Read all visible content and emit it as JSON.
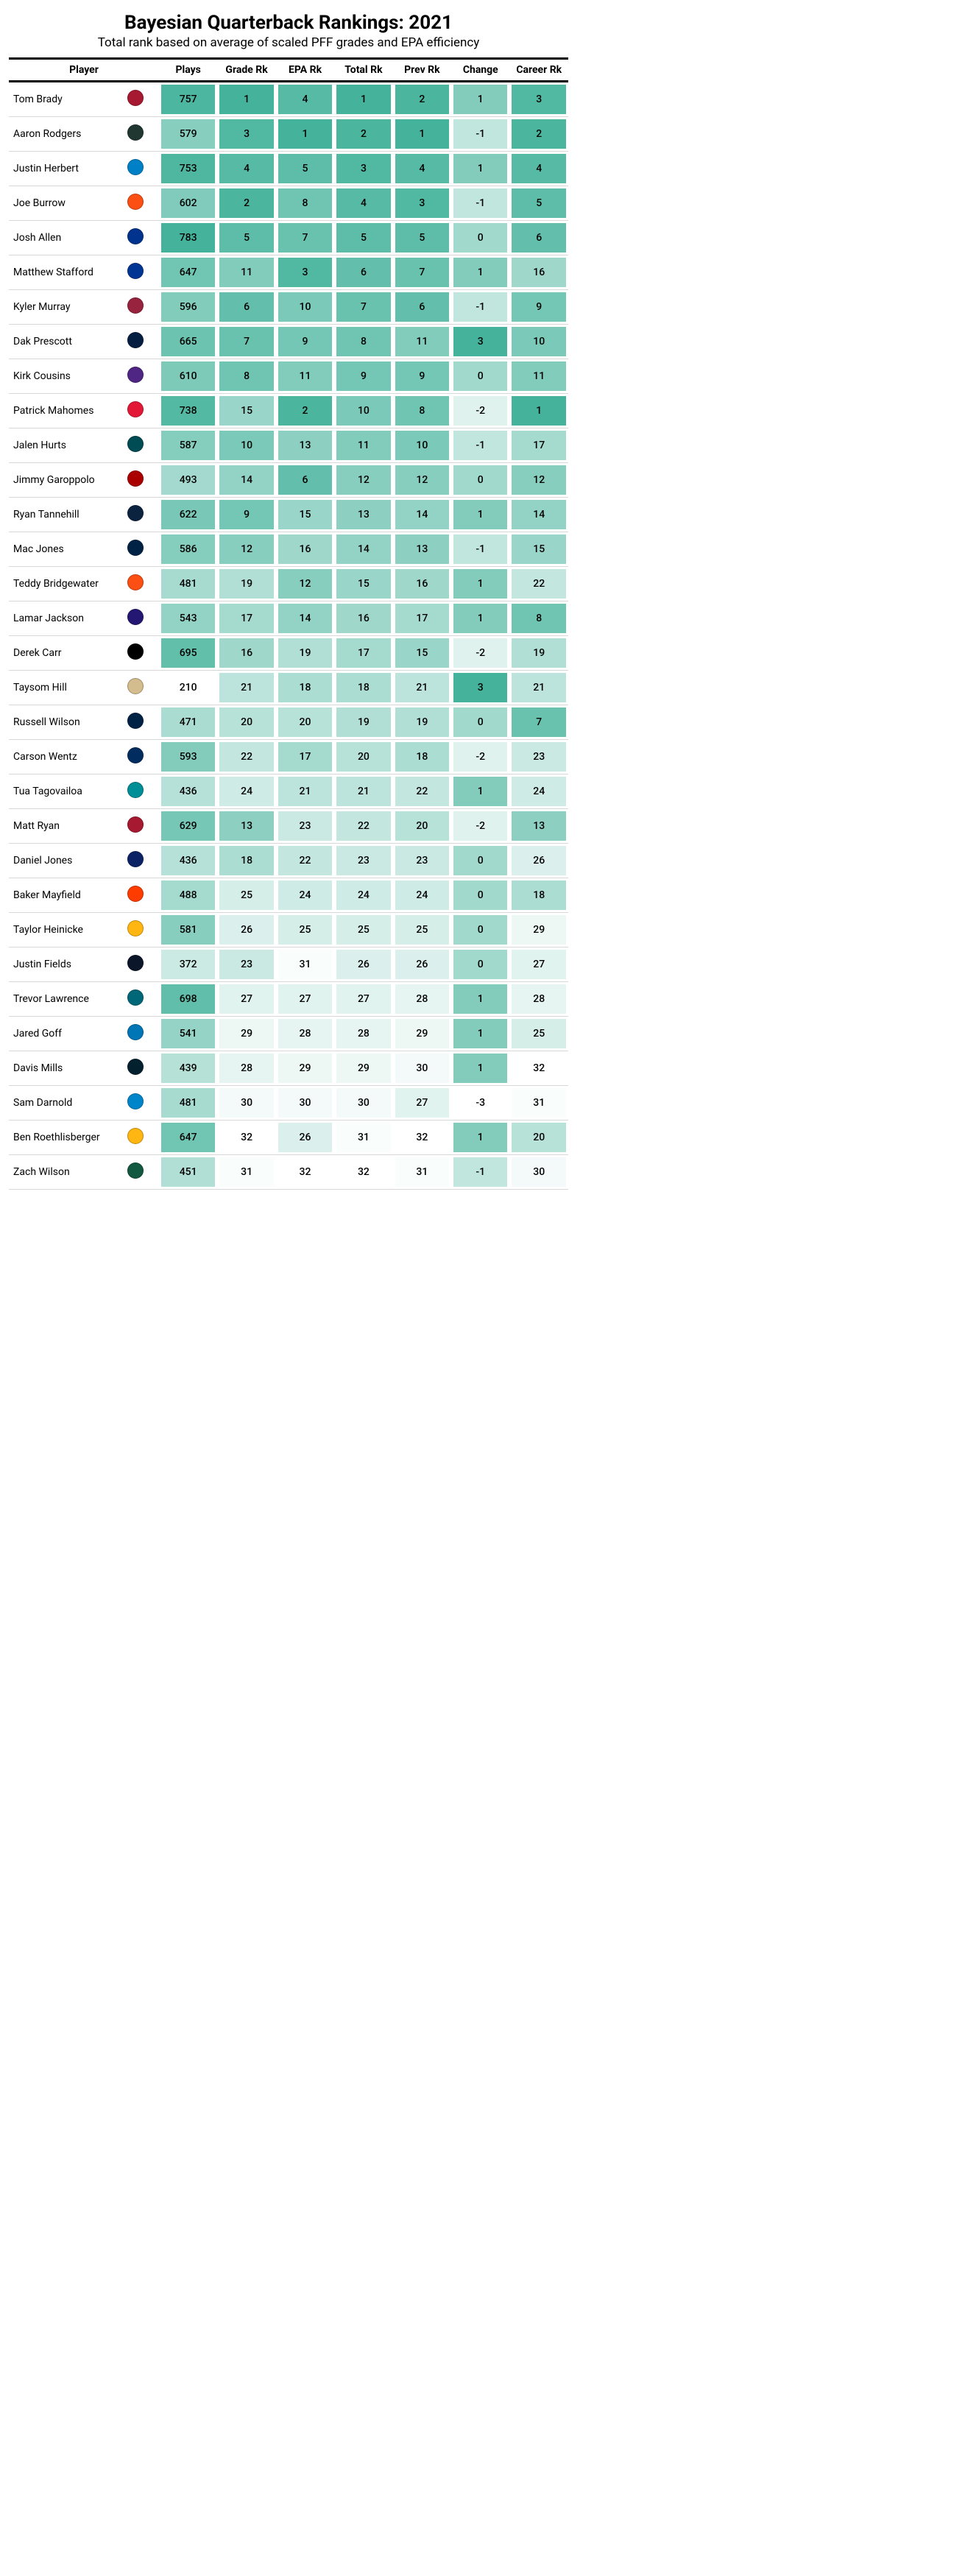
{
  "title": "Bayesian Quarterback Rankings: 2021",
  "subtitle": "Total rank based on average of scaled PFF grades and EPA efficiency",
  "headers": {
    "player": "Player",
    "plays": "Plays",
    "grade": "Grade Rk",
    "epa": "EPA Rk",
    "total": "Total Rk",
    "prev": "Prev Rk",
    "change": "Change",
    "career": "Career Rk"
  },
  "style": {
    "title_fontsize": 26,
    "subtitle_fontsize": 17,
    "header_fontsize": 14,
    "cell_fontsize": 14,
    "background": "#ffffff",
    "row_border": "#d8d8d8",
    "header_border": "#000000"
  },
  "scales": {
    "plays": {
      "domain": [
        210,
        783
      ],
      "range": [
        "#ffffff",
        "#45b39b"
      ]
    },
    "rank": {
      "domain": [
        1,
        32
      ],
      "range": [
        "#45b39b",
        "#ffffff"
      ]
    },
    "change": {
      "domain": [
        -3,
        3
      ],
      "range": [
        "#ffffff",
        "#45b39b"
      ]
    },
    "career": {
      "domain": [
        1,
        32
      ],
      "range": [
        "#45b39b",
        "#ffffff"
      ]
    }
  },
  "columns": [
    {
      "key": "plays",
      "label": "Plays",
      "scale": "plays"
    },
    {
      "key": "grade",
      "label": "Grade Rk",
      "scale": "rank"
    },
    {
      "key": "epa",
      "label": "EPA Rk",
      "scale": "rank"
    },
    {
      "key": "total",
      "label": "Total Rk",
      "scale": "rank"
    },
    {
      "key": "prev",
      "label": "Prev Rk",
      "scale": "rank"
    },
    {
      "key": "change",
      "label": "Change",
      "scale": "change"
    },
    {
      "key": "career",
      "label": "Career Rk",
      "scale": "career"
    }
  ],
  "rows": [
    {
      "player": "Tom Brady",
      "team_color": "#a71930",
      "plays": 757,
      "grade": 1,
      "epa": 4,
      "total": 1,
      "prev": 2,
      "change": 1,
      "career": 3
    },
    {
      "player": "Aaron Rodgers",
      "team_color": "#203731",
      "plays": 579,
      "grade": 3,
      "epa": 1,
      "total": 2,
      "prev": 1,
      "change": -1,
      "career": 2
    },
    {
      "player": "Justin Herbert",
      "team_color": "#0080c6",
      "plays": 753,
      "grade": 4,
      "epa": 5,
      "total": 3,
      "prev": 4,
      "change": 1,
      "career": 4
    },
    {
      "player": "Joe Burrow",
      "team_color": "#fb4f14",
      "plays": 602,
      "grade": 2,
      "epa": 8,
      "total": 4,
      "prev": 3,
      "change": -1,
      "career": 5
    },
    {
      "player": "Josh Allen",
      "team_color": "#00338d",
      "plays": 783,
      "grade": 5,
      "epa": 7,
      "total": 5,
      "prev": 5,
      "change": 0,
      "career": 6
    },
    {
      "player": "Matthew Stafford",
      "team_color": "#003594",
      "plays": 647,
      "grade": 11,
      "epa": 3,
      "total": 6,
      "prev": 7,
      "change": 1,
      "career": 16
    },
    {
      "player": "Kyler Murray",
      "team_color": "#97233f",
      "plays": 596,
      "grade": 6,
      "epa": 10,
      "total": 7,
      "prev": 6,
      "change": -1,
      "career": 9
    },
    {
      "player": "Dak Prescott",
      "team_color": "#041e42",
      "plays": 665,
      "grade": 7,
      "epa": 9,
      "total": 8,
      "prev": 11,
      "change": 3,
      "career": 10
    },
    {
      "player": "Kirk Cousins",
      "team_color": "#4f2683",
      "plays": 610,
      "grade": 8,
      "epa": 11,
      "total": 9,
      "prev": 9,
      "change": 0,
      "career": 11
    },
    {
      "player": "Patrick Mahomes",
      "team_color": "#e31837",
      "plays": 738,
      "grade": 15,
      "epa": 2,
      "total": 10,
      "prev": 8,
      "change": -2,
      "career": 1
    },
    {
      "player": "Jalen Hurts",
      "team_color": "#004c54",
      "plays": 587,
      "grade": 10,
      "epa": 13,
      "total": 11,
      "prev": 10,
      "change": -1,
      "career": 17
    },
    {
      "player": "Jimmy Garoppolo",
      "team_color": "#aa0000",
      "plays": 493,
      "grade": 14,
      "epa": 6,
      "total": 12,
      "prev": 12,
      "change": 0,
      "career": 12
    },
    {
      "player": "Ryan Tannehill",
      "team_color": "#0c2340",
      "plays": 622,
      "grade": 9,
      "epa": 15,
      "total": 13,
      "prev": 14,
      "change": 1,
      "career": 14
    },
    {
      "player": "Mac Jones",
      "team_color": "#002244",
      "plays": 586,
      "grade": 12,
      "epa": 16,
      "total": 14,
      "prev": 13,
      "change": -1,
      "career": 15
    },
    {
      "player": "Teddy Bridgewater",
      "team_color": "#fb4f14",
      "plays": 481,
      "grade": 19,
      "epa": 12,
      "total": 15,
      "prev": 16,
      "change": 1,
      "career": 22
    },
    {
      "player": "Lamar Jackson",
      "team_color": "#241773",
      "plays": 543,
      "grade": 17,
      "epa": 14,
      "total": 16,
      "prev": 17,
      "change": 1,
      "career": 8
    },
    {
      "player": "Derek Carr",
      "team_color": "#000000",
      "plays": 695,
      "grade": 16,
      "epa": 19,
      "total": 17,
      "prev": 15,
      "change": -2,
      "career": 19
    },
    {
      "player": "Taysom Hill",
      "team_color": "#d3bc8d",
      "plays": 210,
      "grade": 21,
      "epa": 18,
      "total": 18,
      "prev": 21,
      "change": 3,
      "career": 21
    },
    {
      "player": "Russell Wilson",
      "team_color": "#002244",
      "plays": 471,
      "grade": 20,
      "epa": 20,
      "total": 19,
      "prev": 19,
      "change": 0,
      "career": 7
    },
    {
      "player": "Carson Wentz",
      "team_color": "#002c5f",
      "plays": 593,
      "grade": 22,
      "epa": 17,
      "total": 20,
      "prev": 18,
      "change": -2,
      "career": 23
    },
    {
      "player": "Tua Tagovailoa",
      "team_color": "#008e97",
      "plays": 436,
      "grade": 24,
      "epa": 21,
      "total": 21,
      "prev": 22,
      "change": 1,
      "career": 24
    },
    {
      "player": "Matt Ryan",
      "team_color": "#a71930",
      "plays": 629,
      "grade": 13,
      "epa": 23,
      "total": 22,
      "prev": 20,
      "change": -2,
      "career": 13
    },
    {
      "player": "Daniel Jones",
      "team_color": "#0b2265",
      "plays": 436,
      "grade": 18,
      "epa": 22,
      "total": 23,
      "prev": 23,
      "change": 0,
      "career": 26
    },
    {
      "player": "Baker Mayfield",
      "team_color": "#ff3c00",
      "plays": 488,
      "grade": 25,
      "epa": 24,
      "total": 24,
      "prev": 24,
      "change": 0,
      "career": 18
    },
    {
      "player": "Taylor Heinicke",
      "team_color": "#ffb612",
      "plays": 581,
      "grade": 26,
      "epa": 25,
      "total": 25,
      "prev": 25,
      "change": 0,
      "career": 29
    },
    {
      "player": "Justin Fields",
      "team_color": "#0b162a",
      "plays": 372,
      "grade": 23,
      "epa": 31,
      "total": 26,
      "prev": 26,
      "change": 0,
      "career": 27
    },
    {
      "player": "Trevor Lawrence",
      "team_color": "#006778",
      "plays": 698,
      "grade": 27,
      "epa": 27,
      "total": 27,
      "prev": 28,
      "change": 1,
      "career": 28
    },
    {
      "player": "Jared Goff",
      "team_color": "#0076b6",
      "plays": 541,
      "grade": 29,
      "epa": 28,
      "total": 28,
      "prev": 29,
      "change": 1,
      "career": 25
    },
    {
      "player": "Davis Mills",
      "team_color": "#03202f",
      "plays": 439,
      "grade": 28,
      "epa": 29,
      "total": 29,
      "prev": 30,
      "change": 1,
      "career": 32
    },
    {
      "player": "Sam Darnold",
      "team_color": "#0085ca",
      "plays": 481,
      "grade": 30,
      "epa": 30,
      "total": 30,
      "prev": 27,
      "change": -3,
      "career": 31
    },
    {
      "player": "Ben Roethlisberger",
      "team_color": "#ffb612",
      "plays": 647,
      "grade": 32,
      "epa": 26,
      "total": 31,
      "prev": 32,
      "change": 1,
      "career": 20
    },
    {
      "player": "Zach Wilson",
      "team_color": "#125740",
      "plays": 451,
      "grade": 31,
      "epa": 32,
      "total": 32,
      "prev": 31,
      "change": -1,
      "career": 30
    }
  ]
}
